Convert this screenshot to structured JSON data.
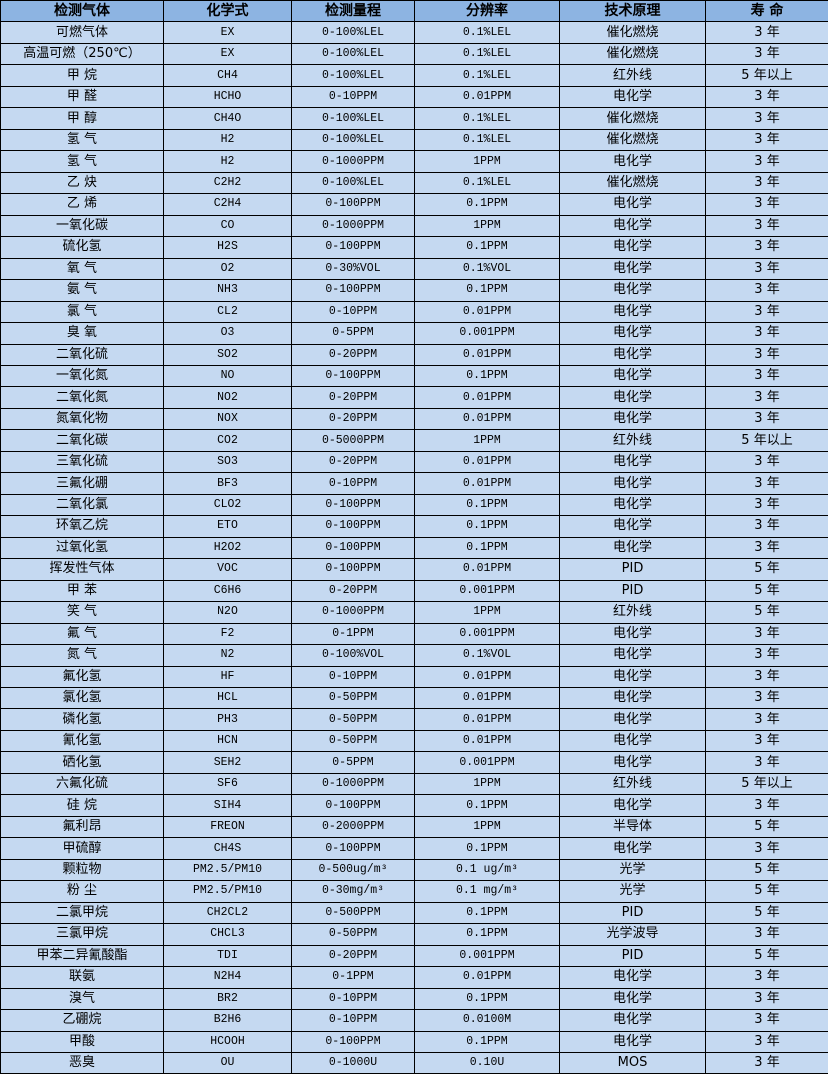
{
  "colors": {
    "header_bg": "#8db4e2",
    "row_bg": "#c5d9f1",
    "border": "#000000"
  },
  "table": {
    "headers": [
      "检测气体",
      "化学式",
      "检测量程",
      "分辨率",
      "技术原理",
      "寿 命"
    ],
    "rows": [
      [
        "可燃气体",
        "EX",
        "0-100%LEL",
        "0.1%LEL",
        "催化燃烧",
        "3 年"
      ],
      [
        "高温可燃（250℃）",
        "EX",
        "0-100%LEL",
        "0.1%LEL",
        "催化燃烧",
        "3 年"
      ],
      [
        "甲 烷",
        "CH4",
        "0-100%LEL",
        "0.1%LEL",
        "红外线",
        "5 年以上"
      ],
      [
        "甲 醛",
        "HCHO",
        "0-10PPM",
        "0.01PPM",
        "电化学",
        "3 年"
      ],
      [
        "甲 醇",
        "CH4O",
        "0-100%LEL",
        "0.1%LEL",
        "催化燃烧",
        "3 年"
      ],
      [
        "氢 气",
        "H2",
        "0-100%LEL",
        "0.1%LEL",
        "催化燃烧",
        "3 年"
      ],
      [
        "氢 气",
        "H2",
        "0-1000PPM",
        "1PPM",
        "电化学",
        "3 年"
      ],
      [
        "乙 炔",
        "C2H2",
        "0-100%LEL",
        "0.1%LEL",
        "催化燃烧",
        "3 年"
      ],
      [
        "乙 烯",
        "C2H4",
        "0-100PPM",
        "0.1PPM",
        "电化学",
        "3 年"
      ],
      [
        "一氧化碳",
        "CO",
        "0-1000PPM",
        "1PPM",
        "电化学",
        "3 年"
      ],
      [
        "硫化氢",
        "H2S",
        "0-100PPM",
        "0.1PPM",
        "电化学",
        "3 年"
      ],
      [
        "氧 气",
        "O2",
        "0-30%VOL",
        "0.1%VOL",
        "电化学",
        "3 年"
      ],
      [
        "氨 气",
        "NH3",
        "0-100PPM",
        "0.1PPM",
        "电化学",
        "3 年"
      ],
      [
        "氯 气",
        "CL2",
        "0-10PPM",
        "0.01PPM",
        "电化学",
        "3 年"
      ],
      [
        "臭 氧",
        "O3",
        "0-5PPM",
        "0.001PPM",
        "电化学",
        "3 年"
      ],
      [
        "二氧化硫",
        "SO2",
        "0-20PPM",
        "0.01PPM",
        "电化学",
        "3 年"
      ],
      [
        "一氧化氮",
        "NO",
        "0-100PPM",
        "0.1PPM",
        "电化学",
        "3 年"
      ],
      [
        "二氧化氮",
        "NO2",
        "0-20PPM",
        "0.01PPM",
        "电化学",
        "3 年"
      ],
      [
        "氮氧化物",
        "NOX",
        "0-20PPM",
        "0.01PPM",
        "电化学",
        "3 年"
      ],
      [
        "二氧化碳",
        "CO2",
        "0-5000PPM",
        "1PPM",
        "红外线",
        "5 年以上"
      ],
      [
        "三氧化硫",
        "SO3",
        "0-20PPM",
        "0.01PPM",
        "电化学",
        "3 年"
      ],
      [
        "三氟化硼",
        "BF3",
        "0-10PPM",
        "0.01PPM",
        "电化学",
        "3 年"
      ],
      [
        "二氧化氯",
        "CLO2",
        "0-100PPM",
        "0.1PPM",
        "电化学",
        "3 年"
      ],
      [
        "环氧乙烷",
        "ETO",
        "0-100PPM",
        "0.1PPM",
        "电化学",
        "3 年"
      ],
      [
        "过氧化氢",
        "H2O2",
        "0-100PPM",
        "0.1PPM",
        "电化学",
        "3 年"
      ],
      [
        "挥发性气体",
        "VOC",
        "0-100PPM",
        "0.01PPM",
        "PID",
        "5 年"
      ],
      [
        "甲 苯",
        "C6H6",
        "0-20PPM",
        "0.001PPM",
        "PID",
        "5 年"
      ],
      [
        "笑 气",
        "N2O",
        "0-1000PPM",
        "1PPM",
        "红外线",
        "5 年"
      ],
      [
        "氟 气",
        "F2",
        "0-1PPM",
        "0.001PPM",
        "电化学",
        "3 年"
      ],
      [
        "氮 气",
        "N2",
        "0-100%VOL",
        "0.1%VOL",
        "电化学",
        "3 年"
      ],
      [
        "氟化氢",
        "HF",
        "0-10PPM",
        "0.01PPM",
        "电化学",
        "3 年"
      ],
      [
        "氯化氢",
        "HCL",
        "0-50PPM",
        "0.01PPM",
        "电化学",
        "3 年"
      ],
      [
        "磷化氢",
        "PH3",
        "0-50PPM",
        "0.01PPM",
        "电化学",
        "3 年"
      ],
      [
        "氰化氢",
        "HCN",
        "0-50PPM",
        "0.01PPM",
        "电化学",
        "3 年"
      ],
      [
        "硒化氢",
        "SEH2",
        "0-5PPM",
        "0.001PPM",
        "电化学",
        "3 年"
      ],
      [
        "六氟化硫",
        "SF6",
        "0-1000PPM",
        "1PPM",
        "红外线",
        "5 年以上"
      ],
      [
        "硅 烷",
        "SIH4",
        "0-100PPM",
        "0.1PPM",
        "电化学",
        "3 年"
      ],
      [
        "氟利昂",
        "FREON",
        "0-2000PPM",
        "1PPM",
        "半导体",
        "5 年"
      ],
      [
        "甲硫醇",
        "CH4S",
        "0-100PPM",
        "0.1PPM",
        "电化学",
        "3 年"
      ],
      [
        "颗粒物",
        "PM2.5/PM10",
        "0-500ug/m³",
        "0.1 ug/m³",
        "光学",
        "5 年"
      ],
      [
        "粉 尘",
        "PM2.5/PM10",
        "0-30mg/m³",
        "0.1 mg/m³",
        "光学",
        "5 年"
      ],
      [
        "二氯甲烷",
        "CH2CL2",
        "0-500PPM",
        "0.1PPM",
        "PID",
        "5 年"
      ],
      [
        "三氯甲烷",
        "CHCL3",
        "0-50PPM",
        "0.1PPM",
        "光学波导",
        "3 年"
      ],
      [
        "甲苯二异氰酸酯",
        "TDI",
        "0-20PPM",
        "0.001PPM",
        "PID",
        "5 年"
      ],
      [
        "联氨",
        "N2H4",
        "0-1PPM",
        "0.01PPM",
        "电化学",
        "3 年"
      ],
      [
        "溴气",
        "BR2",
        "0-10PPM",
        "0.1PPM",
        "电化学",
        "3 年"
      ],
      [
        "乙硼烷",
        "B2H6",
        "0-10PPM",
        "0.0100M",
        "电化学",
        "3 年"
      ],
      [
        "甲酸",
        "HCOOH",
        "0-100PPM",
        "0.1PPM",
        "电化学",
        "3 年"
      ],
      [
        "恶臭",
        "OU",
        "0-1000U",
        "0.10U",
        "MOS",
        "3 年"
      ]
    ]
  }
}
